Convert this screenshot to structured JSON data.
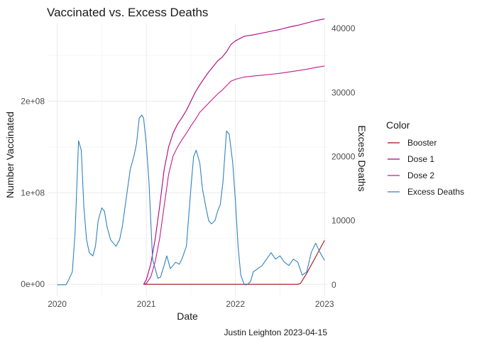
{
  "chart_data": {
    "type": "line",
    "title": "Vaccinated vs. Excess Deaths",
    "xlabel": "Date",
    "ylabel_left": "Number Vaccinated",
    "ylabel_right": "Excess Deaths",
    "caption": "Justin Leighton 2023-04-15",
    "x_ticks": [
      "2020",
      "2021",
      "2022",
      "2023"
    ],
    "x_range": [
      2019.9,
      2023.03
    ],
    "y_left_ticks": [
      "0e+00",
      "1e+08",
      "2e+08"
    ],
    "y_left_tick_values": [
      0,
      100000000,
      200000000
    ],
    "y_left_range": [
      -13000000,
      285000000
    ],
    "y_right_ticks": [
      "0",
      "10000",
      "20000",
      "30000",
      "40000"
    ],
    "y_right_tick_values": [
      0,
      10000,
      20000,
      30000,
      40000
    ],
    "y_right_range": [
      -1800,
      40800
    ],
    "grid": true,
    "legend": {
      "title": "Color",
      "position": "right",
      "entries": [
        {
          "label": "Booster",
          "color": "#a50f15"
        },
        {
          "label": "Dose 1",
          "color": "#ae017e"
        },
        {
          "label": "Dose 2",
          "color": "#c51b8a"
        },
        {
          "label": "Excess Deaths",
          "color": "#3182bd"
        }
      ]
    },
    "series": [
      {
        "name": "Booster",
        "axis": "left",
        "color": "#a50f15",
        "x": [
          2020.97,
          2021.5,
          2022.0,
          2022.5,
          2022.7,
          2022.73,
          2022.8,
          2022.9,
          2023.0
        ],
        "values": [
          0,
          0,
          0,
          0,
          0,
          1000000,
          12000000,
          30000000,
          48000000
        ]
      },
      {
        "name": "Dose 1",
        "axis": "left",
        "color": "#ae017e",
        "x": [
          2020.97,
          2021.0,
          2021.05,
          2021.1,
          2021.15,
          2021.2,
          2021.25,
          2021.3,
          2021.35,
          2021.4,
          2021.45,
          2021.5,
          2021.55,
          2021.6,
          2021.65,
          2021.7,
          2021.75,
          2021.8,
          2021.85,
          2021.9,
          2021.95,
          2022.0,
          2022.1,
          2022.2,
          2022.3,
          2022.4,
          2022.5,
          2022.6,
          2022.7,
          2022.8,
          2022.9,
          2023.0
        ],
        "values": [
          0,
          5000000,
          22000000,
          50000000,
          85000000,
          125000000,
          150000000,
          165000000,
          175000000,
          182000000,
          190000000,
          200000000,
          210000000,
          218000000,
          225000000,
          232000000,
          238000000,
          244000000,
          248000000,
          254000000,
          262000000,
          266000000,
          271000000,
          272500000,
          274500000,
          276500000,
          278500000,
          281000000,
          283000000,
          285500000,
          288000000,
          290000000
        ]
      },
      {
        "name": "Dose 2",
        "axis": "left",
        "color": "#c51b8a",
        "x": [
          2020.97,
          2021.0,
          2021.05,
          2021.1,
          2021.15,
          2021.2,
          2021.25,
          2021.3,
          2021.35,
          2021.4,
          2021.45,
          2021.5,
          2021.55,
          2021.6,
          2021.65,
          2021.7,
          2021.75,
          2021.8,
          2021.85,
          2021.9,
          2021.95,
          2022.0,
          2022.1,
          2022.2,
          2022.3,
          2022.4,
          2022.5,
          2022.6,
          2022.7,
          2022.8,
          2022.9,
          2023.0
        ],
        "values": [
          0,
          1000000,
          8000000,
          25000000,
          50000000,
          85000000,
          120000000,
          140000000,
          150000000,
          158000000,
          165000000,
          173000000,
          180000000,
          188000000,
          193000000,
          198000000,
          203000000,
          208000000,
          212000000,
          217000000,
          222000000,
          224000000,
          226500000,
          227500000,
          228500000,
          229500000,
          230500000,
          232000000,
          233500000,
          235000000,
          237000000,
          238500000
        ]
      },
      {
        "name": "Excess Deaths",
        "axis": "right",
        "color": "#3182bd",
        "x": [
          2020.0,
          2020.05,
          2020.1,
          2020.13,
          2020.17,
          2020.2,
          2020.24,
          2020.27,
          2020.3,
          2020.33,
          2020.36,
          2020.4,
          2020.43,
          2020.46,
          2020.5,
          2020.53,
          2020.56,
          2020.6,
          2020.63,
          2020.66,
          2020.7,
          2020.73,
          2020.76,
          2020.79,
          2020.82,
          2020.86,
          2020.89,
          2020.92,
          2020.95,
          2020.97,
          2021.0,
          2021.03,
          2021.05,
          2021.07,
          2021.1,
          2021.13,
          2021.16,
          2021.2,
          2021.23,
          2021.27,
          2021.3,
          2021.33,
          2021.37,
          2021.4,
          2021.45,
          2021.5,
          2021.53,
          2021.56,
          2021.6,
          2021.63,
          2021.67,
          2021.7,
          2021.73,
          2021.77,
          2021.8,
          2021.83,
          2021.86,
          2021.9,
          2021.93,
          2021.97,
          2022.0,
          2022.03,
          2022.06,
          2022.1,
          2022.13,
          2022.17,
          2022.2,
          2022.25,
          2022.3,
          2022.35,
          2022.4,
          2022.45,
          2022.5,
          2022.55,
          2022.6,
          2022.65,
          2022.7,
          2022.75,
          2022.8,
          2022.85,
          2022.9,
          2022.95,
          2023.0
        ],
        "values": [
          0,
          0,
          0,
          800,
          2000,
          8000,
          22500,
          21000,
          12000,
          7000,
          5000,
          4500,
          6000,
          10000,
          12000,
          11500,
          9000,
          7000,
          6500,
          6000,
          7000,
          9000,
          12000,
          15000,
          18000,
          20000,
          22000,
          26000,
          26500,
          26000,
          22000,
          16000,
          10000,
          4000,
          2500,
          1000,
          1200,
          3000,
          4500,
          2500,
          3000,
          3500,
          3200,
          4000,
          6000,
          15000,
          20000,
          21000,
          19000,
          15000,
          12000,
          10000,
          9500,
          10000,
          11500,
          12500,
          16000,
          24000,
          23500,
          19000,
          13000,
          6000,
          1500,
          0,
          0,
          500,
          2000,
          2500,
          3000,
          4000,
          5000,
          4000,
          4500,
          3500,
          3000,
          4000,
          3500,
          1500,
          2000,
          5000,
          6500,
          5000,
          3800
        ]
      }
    ]
  }
}
